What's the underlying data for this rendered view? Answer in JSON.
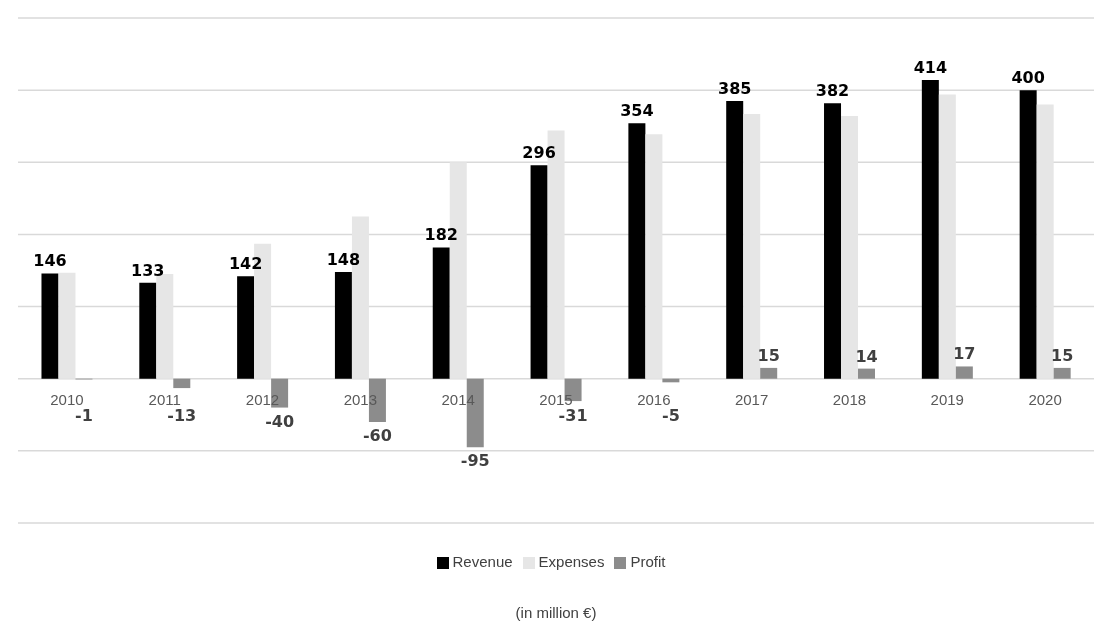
{
  "chart_data": {
    "type": "bar",
    "categories": [
      "2010",
      "2011",
      "2012",
      "2013",
      "2014",
      "2015",
      "2016",
      "2017",
      "2018",
      "2019",
      "2020"
    ],
    "series": [
      {
        "name": "Revenue",
        "color": "#000000",
        "values": [
          146,
          133,
          142,
          148,
          182,
          296,
          354,
          385,
          382,
          414,
          400
        ],
        "value_labels": [
          "146",
          "133",
          "142",
          "148",
          "182",
          "296",
          "354",
          "385",
          "382",
          "414",
          "400"
        ]
      },
      {
        "name": "Expenses",
        "color": "#e6e6e6",
        "values": [
          147,
          145,
          187,
          225,
          300,
          344,
          339,
          367,
          364,
          394,
          380
        ]
      },
      {
        "name": "Profit",
        "color": "#8c8c8c",
        "values": [
          -1,
          -13,
          -40,
          -60,
          -95,
          -31,
          -5,
          15,
          14,
          17,
          15
        ],
        "value_labels": [
          "-1",
          "-13",
          "-40",
          "-60",
          "-95",
          "-31",
          "-5",
          "15",
          "14",
          "17",
          "15"
        ]
      }
    ],
    "ylim": [
      -200,
      500
    ],
    "yticks": [
      {
        "value": -200,
        "label": null
      },
      {
        "value": -100,
        "label": null
      },
      {
        "value": 0,
        "label": null
      },
      {
        "value": 100,
        "label": null
      },
      {
        "value": 200,
        "label": null
      },
      {
        "value": 300,
        "label": null
      },
      {
        "value": 400,
        "label": null
      },
      {
        "value": 500,
        "label": null
      }
    ],
    "grid": "y",
    "tick_labels": "x",
    "legend": "bottom",
    "annotations": [
      "(in million €)"
    ]
  }
}
